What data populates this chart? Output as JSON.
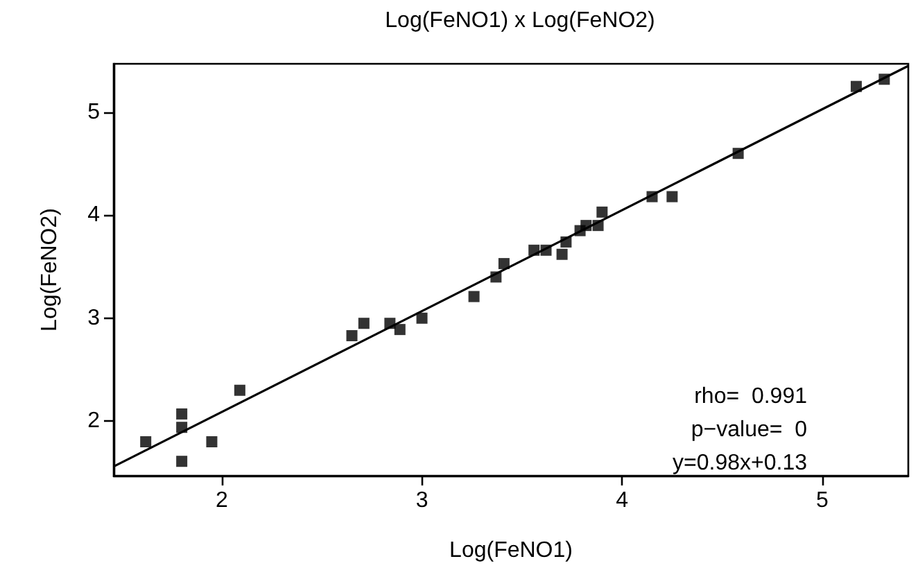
{
  "chart_data": {
    "type": "scatter",
    "title": "Log(FeNO1) x Log(FeNO2)",
    "xlabel": "Log(FeNO1)",
    "ylabel": "Log(FeNO2)",
    "xlim": [
      1.46,
      5.43
    ],
    "ylim": [
      1.47,
      5.47
    ],
    "xticks": [
      2,
      3,
      4,
      5
    ],
    "yticks": [
      2,
      3,
      4,
      5
    ],
    "grid": false,
    "marker": "square",
    "series": [
      {
        "color": "#000000",
        "x": [
          1.62,
          1.8,
          1.8,
          1.8,
          1.95,
          2.09,
          2.65,
          2.71,
          2.84,
          2.89,
          3.0,
          3.26,
          3.37,
          3.41,
          3.56,
          3.62,
          3.7,
          3.72,
          3.79,
          3.82,
          3.88,
          3.9,
          4.15,
          4.25,
          4.58,
          5.17,
          5.31
        ],
        "values": [
          1.8,
          2.07,
          1.94,
          1.61,
          1.8,
          2.3,
          2.83,
          2.95,
          2.95,
          2.89,
          3.0,
          3.21,
          3.4,
          3.53,
          3.66,
          3.66,
          3.62,
          3.74,
          3.85,
          3.9,
          3.9,
          4.03,
          4.18,
          4.18,
          4.6,
          5.25,
          5.32
        ]
      },
      {
        "type": "line",
        "color": "#000000",
        "marker": "none",
        "line_style": "solid",
        "x": [
          1.46,
          5.43
        ],
        "values": [
          1.56,
          5.45
        ]
      }
    ],
    "annotations": [
      "rho=  0.991",
      "p−value=  0",
      "y=0.98x+0.13"
    ]
  }
}
